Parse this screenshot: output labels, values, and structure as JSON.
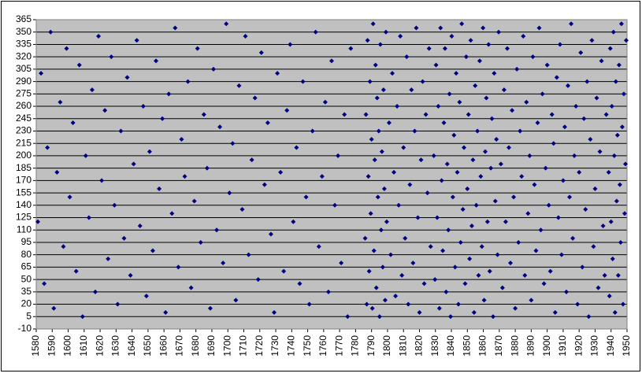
{
  "chart_data": {
    "type": "scatter",
    "color": "#000080",
    "background": "#c0c0c0",
    "grid": true,
    "xlim": [
      1580,
      1950
    ],
    "ylim": [
      -10,
      365
    ],
    "xticks": [
      1580,
      1590,
      1600,
      1610,
      1620,
      1630,
      1640,
      1650,
      1660,
      1670,
      1680,
      1690,
      1700,
      1710,
      1720,
      1730,
      1740,
      1750,
      1760,
      1770,
      1780,
      1790,
      1800,
      1810,
      1820,
      1830,
      1840,
      1850,
      1860,
      1870,
      1880,
      1890,
      1900,
      1910,
      1920,
      1930,
      1940,
      1950
    ],
    "yticks": [
      -10,
      5,
      20,
      35,
      50,
      65,
      80,
      95,
      110,
      125,
      140,
      155,
      170,
      185,
      200,
      215,
      230,
      245,
      260,
      275,
      290,
      305,
      320,
      335,
      350,
      365
    ],
    "x": [
      1581,
      1583,
      1585,
      1587,
      1589,
      1591,
      1593,
      1595,
      1597,
      1599,
      1601,
      1603,
      1605,
      1607,
      1609,
      1611,
      1613,
      1615,
      1617,
      1619,
      1621,
      1623,
      1625,
      1627,
      1629,
      1631,
      1633,
      1635,
      1637,
      1639,
      1641,
      1643,
      1645,
      1647,
      1649,
      1651,
      1653,
      1655,
      1657,
      1659,
      1661,
      1663,
      1665,
      1667,
      1669,
      1671,
      1673,
      1675,
      1677,
      1679,
      1681,
      1683,
      1685,
      1687,
      1689,
      1691,
      1693,
      1695,
      1697,
      1699,
      1701,
      1703,
      1705,
      1707,
      1709,
      1711,
      1713,
      1715,
      1717,
      1719,
      1721,
      1723,
      1725,
      1727,
      1729,
      1731,
      1733,
      1735,
      1737,
      1739,
      1741,
      1743,
      1745,
      1747,
      1749,
      1751,
      1753,
      1755,
      1757,
      1759,
      1761,
      1763,
      1765,
      1767,
      1769,
      1771,
      1773,
      1775,
      1777,
      1786,
      1786.5,
      1787,
      1787.5,
      1788,
      1788.5,
      1789,
      1789.5,
      1790,
      1790.5,
      1791,
      1791.5,
      1792,
      1792.5,
      1793,
      1793.5,
      1794,
      1794.5,
      1795,
      1795.5,
      1796,
      1796.5,
      1797,
      1797.5,
      1798,
      1798.5,
      1799,
      1799.5,
      1801,
      1802,
      1803,
      1804,
      1805,
      1806,
      1807,
      1808,
      1809,
      1810,
      1811,
      1812,
      1813,
      1814,
      1815,
      1816,
      1817,
      1818,
      1819,
      1820,
      1821,
      1822,
      1823,
      1824,
      1825,
      1826,
      1827,
      1829,
      1829.7,
      1830.4,
      1831.1,
      1831.8,
      1832.5,
      1833.2,
      1833.9,
      1834.6,
      1835.3,
      1836,
      1836.7,
      1837.4,
      1838.1,
      1838.8,
      1839.5,
      1840.2,
      1840.9,
      1841.6,
      1842.3,
      1843,
      1843.7,
      1844.4,
      1845.1,
      1845.8,
      1846.5,
      1847.2,
      1847.9,
      1848.6,
      1849.3,
      1850,
      1850.7,
      1851.4,
      1852.1,
      1852.8,
      1853.5,
      1854.2,
      1854.9,
      1855.6,
      1856.3,
      1857,
      1857.7,
      1858.4,
      1859.1,
      1859.8,
      1860.5,
      1861.2,
      1861.9,
      1862.6,
      1863.3,
      1864,
      1864.7,
      1865.4,
      1866.1,
      1866.8,
      1867.5,
      1868.2,
      1868.9,
      1869.6,
      1871,
      1872,
      1873,
      1874,
      1875,
      1876,
      1877,
      1878,
      1879,
      1880,
      1881,
      1882,
      1883,
      1884,
      1885,
      1886,
      1887,
      1888,
      1889,
      1890,
      1891,
      1892,
      1893,
      1894,
      1895,
      1896,
      1897,
      1898,
      1899,
      1900,
      1901,
      1902,
      1903,
      1904,
      1905,
      1906,
      1907,
      1908,
      1909,
      1910,
      1911,
      1912,
      1913,
      1914,
      1915,
      1916,
      1917,
      1918,
      1919,
      1920,
      1921,
      1922,
      1923,
      1924,
      1925,
      1926,
      1927,
      1928,
      1929,
      1930,
      1931,
      1932,
      1933,
      1934,
      1935,
      1936,
      1937,
      1938.5,
      1939,
      1939.5,
      1940,
      1940.5,
      1941,
      1941.5,
      1942,
      1942.5,
      1943,
      1943.5,
      1944,
      1944.5,
      1945,
      1945.5,
      1946,
      1946.5,
      1947,
      1947.5,
      1948,
      1948.5,
      1949,
      1949.5
    ],
    "values": [
      120,
      300,
      45,
      210,
      350,
      15,
      180,
      265,
      90,
      330,
      150,
      240,
      60,
      310,
      5,
      200,
      125,
      280,
      35,
      345,
      170,
      255,
      75,
      320,
      140,
      20,
      230,
      100,
      295,
      55,
      190,
      340,
      115,
      260,
      30,
      205,
      85,
      315,
      160,
      245,
      10,
      275,
      130,
      355,
      65,
      220,
      175,
      290,
      40,
      145,
      330,
      95,
      250,
      185,
      15,
      305,
      110,
      235,
      70,
      360,
      155,
      215,
      25,
      285,
      135,
      345,
      80,
      195,
      270,
      50,
      325,
      165,
      240,
      105,
      10,
      300,
      180,
      60,
      255,
      335,
      120,
      210,
      45,
      290,
      150,
      20,
      230,
      350,
      90,
      175,
      265,
      35,
      315,
      140,
      200,
      70,
      250,
      5,
      330,
      100,
      250,
      20,
      340,
      175,
      60,
      290,
      130,
      220,
      15,
      360,
      85,
      195,
      310,
      40,
      270,
      150,
      230,
      5,
      335,
      110,
      205,
      65,
      280,
      160,
      25,
      350,
      120,
      240,
      80,
      300,
      180,
      30,
      260,
      140,
      345,
      55,
      210,
      100,
      320,
      20,
      165,
      280,
      70,
      230,
      355,
      125,
      10,
      195,
      290,
      45,
      250,
      155,
      330,
      90,
      200,
      50,
      310,
      125,
      260,
      15,
      355,
      170,
      85,
      240,
      330,
      35,
      190,
      110,
      275,
      5,
      345,
      150,
      225,
      65,
      300,
      180,
      20,
      265,
      95,
      360,
      135,
      210,
      45,
      320,
      160,
      250,
      75,
      340,
      115,
      195,
      10,
      285,
      140,
      230,
      55,
      315,
      175,
      90,
      355,
      25,
      205,
      270,
      120,
      335,
      60,
      185,
      245,
      5,
      300,
      145,
      220,
      80,
      350,
      190,
      40,
      280,
      120,
      330,
      210,
      70,
      255,
      150,
      15,
      305,
      95,
      230,
      175,
      345,
      55,
      265,
      130,
      200,
      25,
      320,
      165,
      85,
      240,
      355,
      110,
      275,
      45,
      185,
      310,
      140,
      60,
      250,
      215,
      10,
      295,
      125,
      335,
      80,
      170,
      235,
      35,
      285,
      150,
      360,
      100,
      200,
      260,
      20,
      180,
      325,
      65,
      245,
      135,
      290,
      5,
      220,
      340,
      90,
      160,
      270,
      40,
      205,
      315,
      115,
      55,
      250,
      180,
      30,
      330,
      120,
      260,
      75,
      350,
      200,
      10,
      290,
      145,
      225,
      55,
      310,
      165,
      95,
      360,
      235,
      20,
      275,
      130,
      190,
      340
    ]
  }
}
